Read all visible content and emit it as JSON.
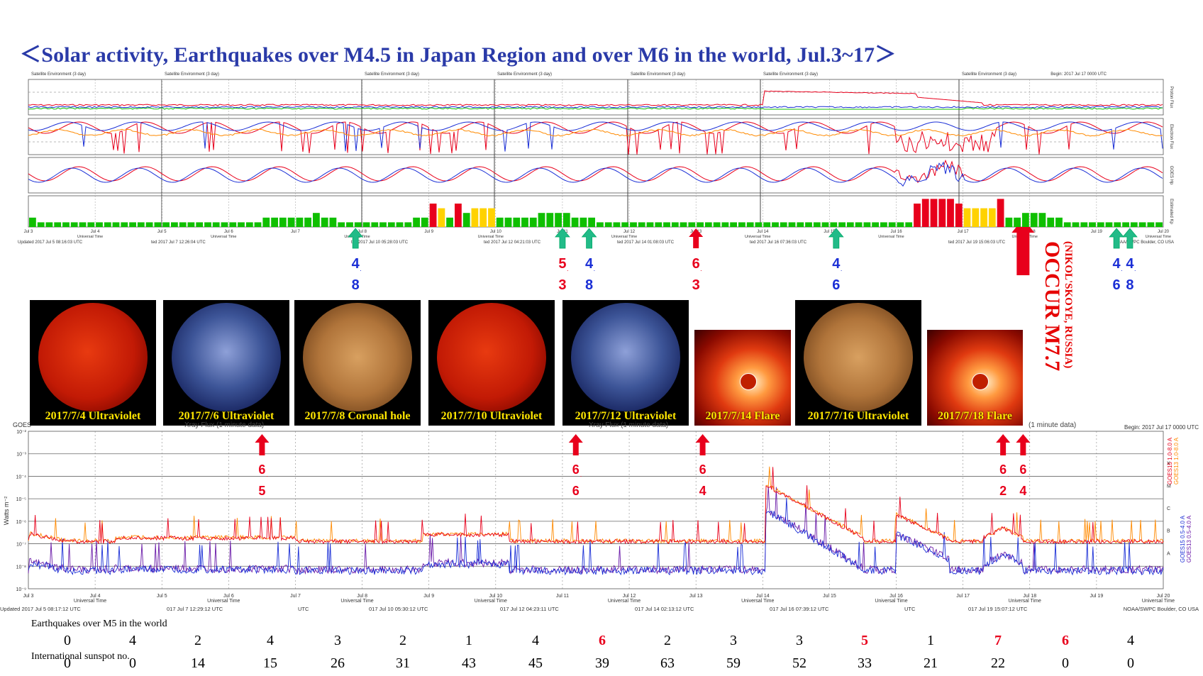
{
  "title": "＜Solar activity, Earthquakes over M4.5 in Japan Region and over M6 in the world, Jul.3~17＞",
  "colors": {
    "red": "#e8001c",
    "blue": "#1b2fd6",
    "green": "#0fbf00",
    "orange": "#ff8a00",
    "yellow": "#ffd200",
    "teal": "#22bb88",
    "purple": "#6a1aa8"
  },
  "top_panel": {
    "panel_headers": [
      "Satellite Environment (3 day)",
      "Satellite Environment (3 day)",
      "Satellite Environment (3 day)",
      "Satellite Environment (3 day)",
      "Satellite Environment (3 day)",
      "Satellite Environment (3 day)",
      "Satellite Environment (3 day)"
    ],
    "begin_label": "Begin:  2017 Jul 17 0000 UTC",
    "right_labels": [
      "Proton Flux",
      "Electron Flux",
      "GOES Hp",
      "Estimated Kp"
    ],
    "date_ticks": [
      "Jul 3",
      "Jul 4",
      "Jul 5",
      "Jul 6",
      "Jul 7",
      "Jul 8",
      "Jul 9",
      "Jul 10",
      "Jul 11",
      "Jul 12",
      "Jul 13",
      "Jul 14",
      "Jul 15",
      "Jul 16",
      "Jul 17",
      "Jul 18",
      "Jul 19",
      "Jul 20"
    ],
    "axis_label": "Universal Time",
    "updated": [
      "Updated 2017 Jul  5 08:16:03 UTC",
      "ted 2017 Jul  7 12:26:04 UTC",
      "ted 2017 Jul 10 05:28:03 UTC",
      "ted 2017 Jul 12 04:21:03 UTC",
      "ted 2017 Jul 14 01:08:03 UTC",
      "ted 2017 Jul 16 07:36:03 UTC",
      "ted 2017 Jul 19 15:06:03 UTC"
    ],
    "credit": "NOAA/SWPC Boulder, CO USA"
  },
  "kp_markers": [
    {
      "label": "4.8",
      "line1": "4",
      "line2": "8",
      "color": "#1b2fd6",
      "arrow": "teal",
      "day": "Jul 7.9"
    },
    {
      "label": "5.3",
      "line1": "5",
      "line2": "3",
      "color": "#e8001c",
      "arrow": "teal",
      "day": "Jul 11.0"
    },
    {
      "label": "4.8",
      "line1": "4",
      "line2": "8",
      "color": "#1b2fd6",
      "arrow": "teal",
      "day": "Jul 11.4"
    },
    {
      "label": "6.3",
      "line1": "6",
      "line2": "3",
      "color": "#e8001c",
      "arrow": "red",
      "day": "Jul 13.0"
    },
    {
      "label": "4.6",
      "line1": "4",
      "line2": "6",
      "color": "#1b2fd6",
      "arrow": "teal",
      "day": "Jul 15.1"
    },
    {
      "label": "4.6",
      "line1": "4",
      "line2": "6",
      "color": "#1b2fd6",
      "arrow": "teal",
      "day": "Jul 19.3"
    },
    {
      "label": "4.8",
      "line1": "4",
      "line2": "8",
      "color": "#1b2fd6",
      "arrow": "teal",
      "day": "Jul 19.5"
    }
  ],
  "occur": {
    "main": "OCCUR M7.7",
    "sub": "(NIKOL'SKOYE, RUSSIA)"
  },
  "photos": [
    {
      "caption": "2017/7/4 Ultraviolet",
      "kind": "red-sun"
    },
    {
      "caption": "2017/7/6 Ultraviolet",
      "kind": "blue-sun"
    },
    {
      "caption": "2017/7/8 Coronal hole",
      "kind": "gold-sun"
    },
    {
      "caption": "2017/7/10 Ultraviolet",
      "kind": "red-sun"
    },
    {
      "caption": "2017/7/12 Ultraviolet",
      "kind": "blue-sun"
    },
    {
      "caption": "2017/7/14 Flare",
      "kind": "flare"
    },
    {
      "caption": "2017/7/16 Ultraviolet",
      "kind": "gold-sun"
    },
    {
      "caption": "2017/7/18 Flare",
      "kind": "flare"
    }
  ],
  "xray_panel": {
    "header_left": "GOES",
    "header_fragments": [
      "Xray Flux (1 minute data)",
      "Xray Flux (1 minute data)",
      "(1 minute data)"
    ],
    "begin_label": "Begin:  2017 Jul 17 0000 UTC",
    "ylabel": "Watts m⁻²",
    "yticks": [
      "10⁻²",
      "10⁻³",
      "10⁻⁴",
      "10⁻⁵",
      "10⁻⁶",
      "10⁻⁷",
      "10⁻⁸",
      "10⁻⁹"
    ],
    "class_labels": [
      "X",
      "M",
      "C",
      "B",
      "A"
    ],
    "legend": [
      "GOES15 1.0-8.0 A",
      "GOES13 1.0-8.0 A",
      "GOES15 0.5-4.0 A",
      "GOES13 0.5-4.0 A"
    ],
    "axis_label": "Universal Time",
    "updated": [
      "Updated 2017 Jul  5 08:17:12 UTC",
      "017 Jul  7 12:29:12 UTC",
      "UTC",
      "017 Jul 10 05:30:12 UTC",
      "017 Jul 12 04:23:11 UTC",
      "017 Jul 14 02:13:12 UTC",
      "017 Jul 16 07:39:12 UTC",
      "UTC",
      "017 Jul 19 15:07:12 UTC"
    ],
    "credit": "NOAA/SWPC Boulder, CO USA"
  },
  "xray_markers": [
    {
      "line1": "6",
      "line2": "5",
      "day": "Jul 6.5"
    },
    {
      "line1": "6",
      "line2": "6",
      "day": "Jul 11.2"
    },
    {
      "line1": "6",
      "line2": "4",
      "day": "Jul 13.1"
    },
    {
      "line1": "6",
      "line2": "2",
      "day": "Jul 17.6"
    },
    {
      "line1": "6",
      "line2": "4",
      "day": "Jul 17.9"
    }
  ],
  "chart_data": {
    "type": "bar",
    "title": "Estimated Kp",
    "categories": [
      "Jul 3",
      "Jul 4",
      "Jul 5",
      "Jul 6",
      "Jul 7",
      "Jul 8",
      "Jul 9",
      "Jul 10",
      "Jul 11",
      "Jul 12",
      "Jul 13",
      "Jul 14",
      "Jul 15",
      "Jul 16",
      "Jul 17",
      "Jul 18",
      "Jul 19"
    ],
    "series": [
      {
        "name": "Kp",
        "values_per_3h": [
          [
            2,
            1,
            1,
            1,
            1,
            1,
            1,
            1
          ],
          [
            1,
            1,
            1,
            1,
            1,
            1,
            1,
            1
          ],
          [
            1,
            1,
            1,
            1,
            1,
            1,
            1,
            1
          ],
          [
            1,
            1,
            1,
            1,
            2,
            2,
            2,
            2
          ],
          [
            2,
            2,
            3,
            2,
            2,
            1,
            1,
            1
          ],
          [
            1,
            1,
            1,
            1,
            1,
            1,
            2,
            2
          ],
          [
            5,
            4,
            2,
            5,
            3,
            4,
            4,
            4
          ],
          [
            2,
            2,
            2,
            2,
            2,
            3,
            3,
            3
          ],
          [
            3,
            2,
            2,
            2,
            1,
            1,
            1,
            1
          ],
          [
            1,
            1,
            1,
            1,
            1,
            1,
            1,
            1
          ],
          [
            1,
            1,
            1,
            1,
            1,
            1,
            1,
            1
          ],
          [
            1,
            1,
            1,
            1,
            1,
            1,
            1,
            1
          ],
          [
            1,
            1,
            1,
            1,
            1,
            1,
            1,
            1
          ],
          [
            1,
            1,
            5,
            6,
            6,
            6,
            6,
            5
          ],
          [
            4,
            4,
            4,
            4,
            6,
            2,
            2,
            3
          ],
          [
            3,
            3,
            2,
            2,
            1,
            1,
            1,
            1
          ],
          [
            1,
            1,
            1,
            1,
            1,
            1,
            1,
            1
          ]
        ]
      }
    ],
    "ylim": [
      0,
      9
    ],
    "earthquakes_world_label": "Earthquakes over M5 in the world",
    "earthquakes_world": [
      0,
      4,
      2,
      4,
      3,
      2,
      1,
      4,
      6,
      2,
      3,
      3,
      5,
      1,
      7,
      6,
      4
    ],
    "earthquakes_highlight": [
      false,
      false,
      false,
      false,
      false,
      false,
      false,
      false,
      true,
      false,
      false,
      false,
      true,
      false,
      true,
      true,
      false
    ],
    "sunspot_label": "International sunspot no.",
    "sunspot": [
      0,
      0,
      14,
      15,
      26,
      31,
      43,
      45,
      39,
      63,
      59,
      52,
      33,
      21,
      22,
      0,
      0
    ]
  }
}
